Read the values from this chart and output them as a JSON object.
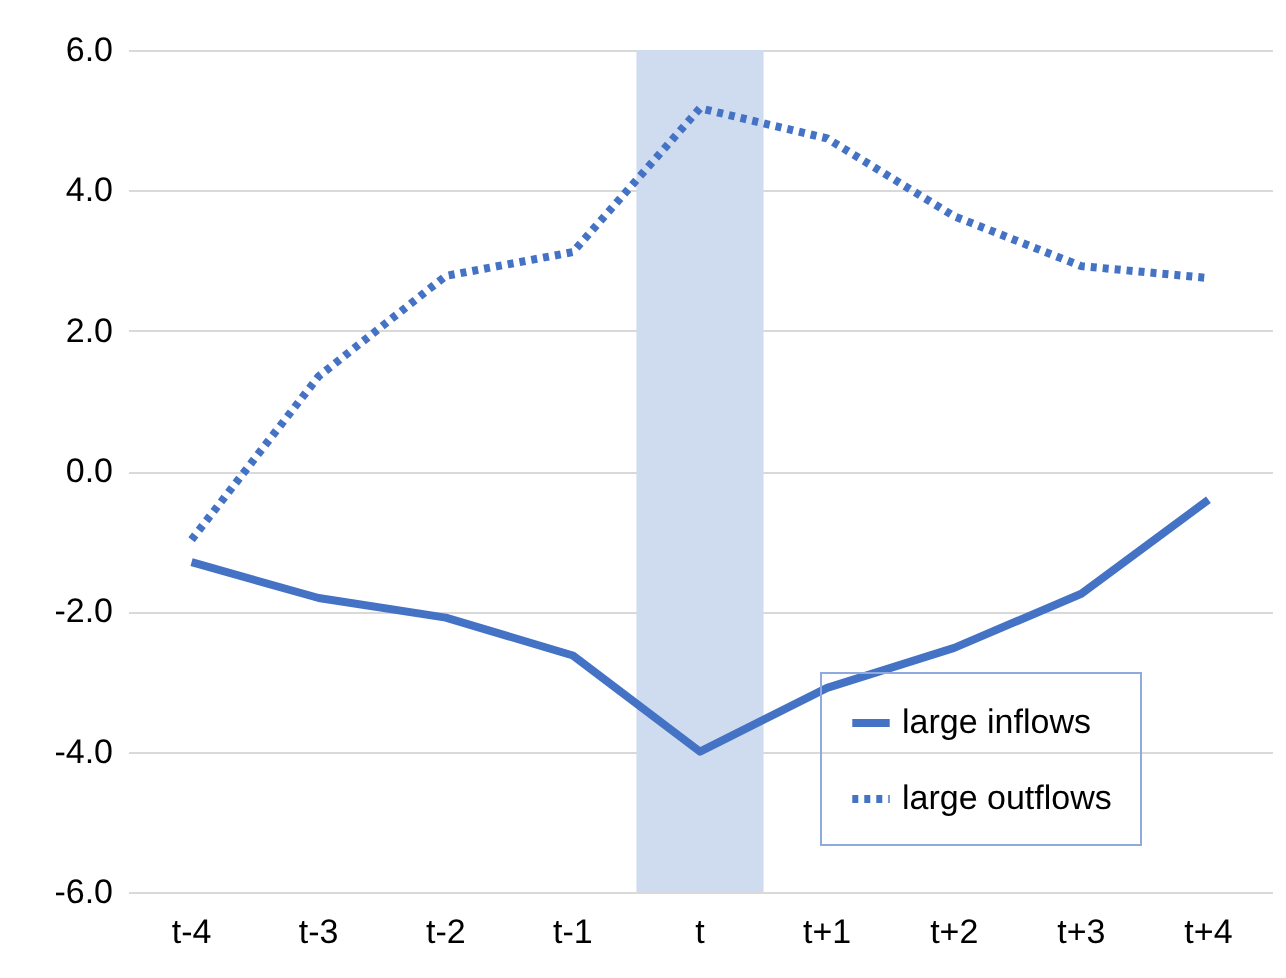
{
  "chart_data": {
    "type": "line",
    "categories": [
      "t-4",
      "t-3",
      "t-2",
      "t-1",
      "t",
      "t+1",
      "t+2",
      "t+3",
      "t+4"
    ],
    "series": [
      {
        "name": "large inflows",
        "color": "#4472c4",
        "line_style": "solid",
        "values": [
          -1.3,
          -1.81,
          -2.09,
          -2.63,
          -4.0,
          -3.09,
          -2.52,
          -1.75,
          -0.41
        ]
      },
      {
        "name": "large outflows",
        "color": "#4472c4",
        "line_style": "dotted",
        "values": [
          -0.98,
          1.35,
          2.78,
          3.12,
          5.17,
          4.74,
          3.63,
          2.92,
          2.75
        ]
      }
    ],
    "ylim": [
      -6,
      6
    ],
    "yticks": [
      {
        "value": -6,
        "label": "-6.0"
      },
      {
        "value": -4,
        "label": "-4.0"
      },
      {
        "value": -2,
        "label": "-2.0"
      },
      {
        "value": 0,
        "label": "0.0"
      },
      {
        "value": 2,
        "label": "2.0"
      },
      {
        "value": 4,
        "label": "4.0"
      },
      {
        "value": 6,
        "label": "6.0"
      }
    ],
    "bands": [
      {
        "axis": "x",
        "from": "t",
        "to": "t",
        "color": "#cfdcef"
      }
    ],
    "grid": "y",
    "legend": "bottom right"
  }
}
